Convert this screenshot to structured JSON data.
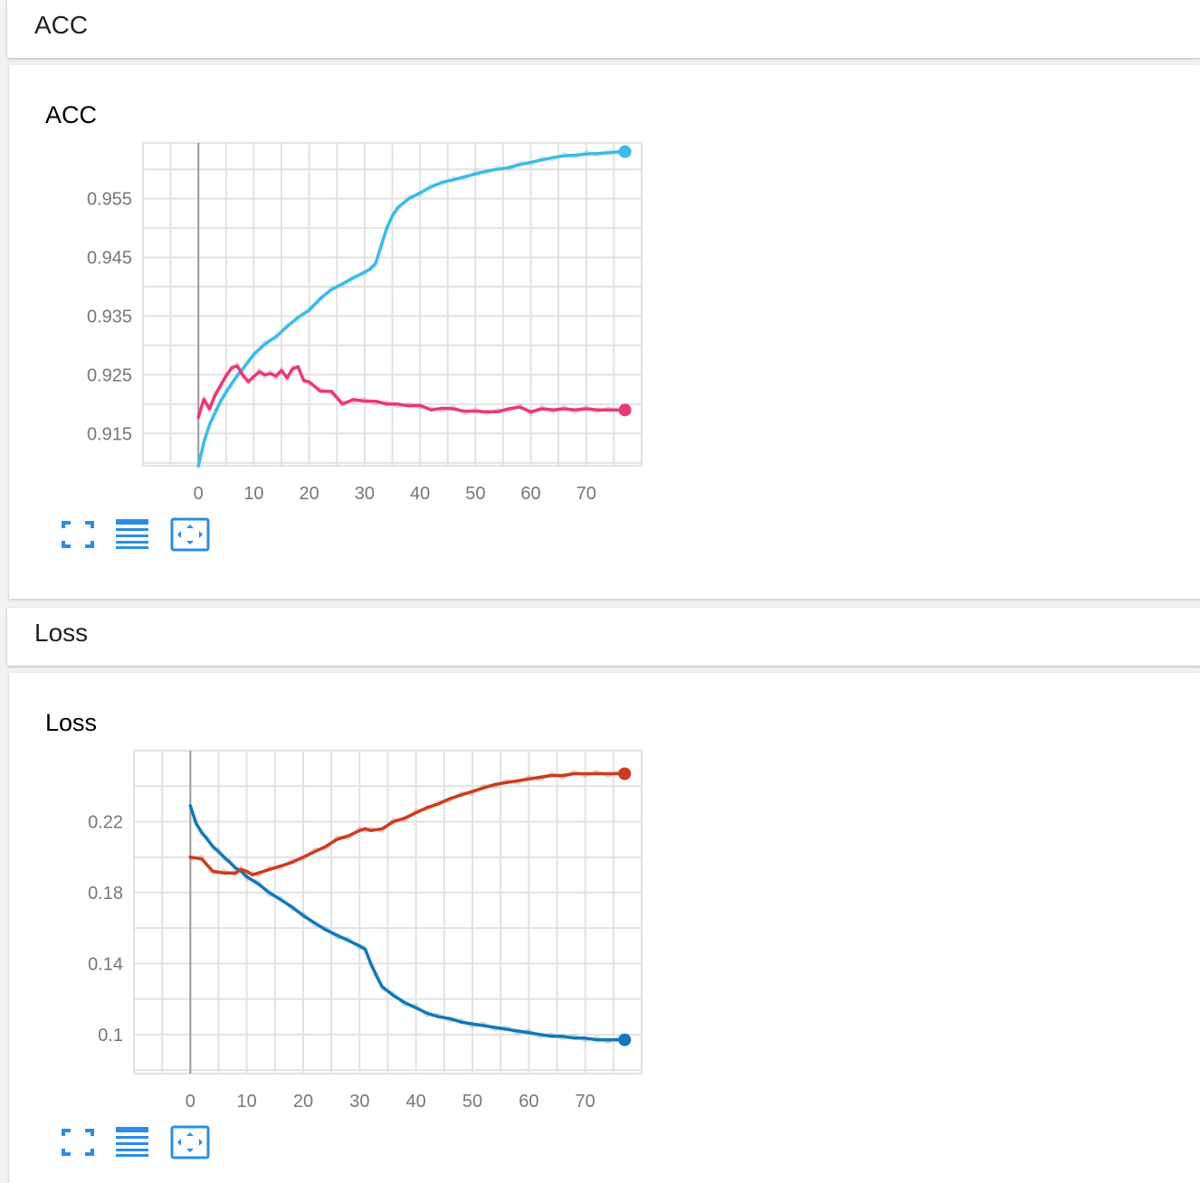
{
  "sections": [
    {
      "header": "ACC",
      "card_title": "ACC"
    },
    {
      "header": "Loss",
      "card_title": "Loss"
    }
  ],
  "colors": {
    "train_acc": "#3bbbe8",
    "val_acc": "#e8387a",
    "train_loss": "#1278b8",
    "val_loss": "#cc3b1e",
    "icon_blue": "#2b8de6"
  },
  "icons": [
    "fullscreen-icon",
    "toggle-log-scale-icon",
    "fit-domain-icon"
  ],
  "chart_data": [
    {
      "type": "line",
      "title": "ACC",
      "xlim": [
        -10,
        80
      ],
      "ylim": [
        0.9095,
        0.9645
      ],
      "x_ticks": [
        0,
        10,
        20,
        30,
        40,
        50,
        60,
        70
      ],
      "y_ticks": [
        0.915,
        0.925,
        0.935,
        0.945,
        0.955
      ],
      "y_tick_labels": [
        "0.915",
        "0.925",
        "0.935",
        "0.945",
        "0.955"
      ],
      "x_tick_labels": [
        "0",
        "10",
        "20",
        "30",
        "40",
        "50",
        "60",
        "70"
      ],
      "grid": true,
      "series": [
        {
          "color_key": "train_acc",
          "x": [
            0,
            1,
            2,
            3,
            4,
            5,
            6,
            7,
            8,
            9,
            10,
            12,
            14,
            16,
            18,
            20,
            22,
            24,
            26,
            28,
            30,
            31,
            32,
            33,
            34,
            35,
            36,
            38,
            40,
            42,
            44,
            46,
            48,
            50,
            52,
            54,
            56,
            58,
            60,
            62,
            64,
            66,
            68,
            70,
            72,
            74,
            76,
            77
          ],
          "y": [
            0.9095,
            0.9135,
            0.9165,
            0.9185,
            0.9205,
            0.922,
            0.9235,
            0.9248,
            0.926,
            0.9272,
            0.9285,
            0.9302,
            0.9315,
            0.9332,
            0.9348,
            0.936,
            0.938,
            0.9395,
            0.9405,
            0.9415,
            0.9425,
            0.943,
            0.944,
            0.947,
            0.95,
            0.952,
            0.9535,
            0.955,
            0.956,
            0.957,
            0.9578,
            0.9582,
            0.9587,
            0.9592,
            0.9597,
            0.96,
            0.9603,
            0.9608,
            0.9612,
            0.9616,
            0.962,
            0.9623,
            0.9624,
            0.9626,
            0.9627,
            0.9628,
            0.963,
            0.963
          ]
        },
        {
          "color_key": "val_acc",
          "x": [
            0,
            1,
            2,
            3,
            4,
            5,
            6,
            7,
            8,
            9,
            10,
            11,
            12,
            13,
            14,
            15,
            16,
            17,
            18,
            19,
            20,
            22,
            24,
            26,
            28,
            30,
            32,
            34,
            36,
            38,
            40,
            42,
            44,
            46,
            48,
            50,
            52,
            54,
            56,
            58,
            60,
            62,
            64,
            66,
            68,
            70,
            72,
            74,
            76,
            77
          ],
          "y": [
            0.9178,
            0.9208,
            0.9192,
            0.9215,
            0.9232,
            0.9248,
            0.9262,
            0.9265,
            0.925,
            0.9238,
            0.9247,
            0.9255,
            0.925,
            0.9252,
            0.9248,
            0.9257,
            0.9245,
            0.926,
            0.9264,
            0.924,
            0.9238,
            0.9222,
            0.9222,
            0.92,
            0.9208,
            0.9205,
            0.9205,
            0.92,
            0.92,
            0.9197,
            0.9198,
            0.919,
            0.9193,
            0.9192,
            0.9188,
            0.9188,
            0.9187,
            0.9187,
            0.9192,
            0.9195,
            0.9187,
            0.9192,
            0.919,
            0.9192,
            0.919,
            0.9192,
            0.919,
            0.919,
            0.919,
            0.919
          ]
        }
      ]
    },
    {
      "type": "line",
      "title": "Loss",
      "xlim": [
        -10,
        80
      ],
      "ylim": [
        0.078,
        0.26
      ],
      "x_ticks": [
        0,
        10,
        20,
        30,
        40,
        50,
        60,
        70
      ],
      "y_ticks": [
        0.1,
        0.14,
        0.18,
        0.22
      ],
      "y_tick_labels": [
        "0.1",
        "0.14",
        "0.18",
        "0.22"
      ],
      "x_tick_labels": [
        "0",
        "10",
        "20",
        "30",
        "40",
        "50",
        "60",
        "70"
      ],
      "grid": true,
      "series": [
        {
          "color_key": "train_loss",
          "x": [
            0,
            1,
            2,
            3,
            4,
            5,
            6,
            7,
            8,
            9,
            10,
            12,
            14,
            16,
            18,
            20,
            22,
            24,
            26,
            28,
            30,
            31,
            32,
            33,
            34,
            36,
            38,
            40,
            42,
            44,
            46,
            48,
            50,
            52,
            54,
            56,
            58,
            60,
            62,
            64,
            66,
            68,
            70,
            72,
            74,
            76,
            77
          ],
          "y": [
            0.229,
            0.219,
            0.214,
            0.21,
            0.206,
            0.203,
            0.2,
            0.197,
            0.194,
            0.192,
            0.189,
            0.185,
            0.18,
            0.176,
            0.172,
            0.167,
            0.163,
            0.159,
            0.156,
            0.153,
            0.15,
            0.148,
            0.14,
            0.133,
            0.127,
            0.122,
            0.118,
            0.115,
            0.112,
            0.11,
            0.109,
            0.107,
            0.106,
            0.105,
            0.104,
            0.103,
            0.102,
            0.101,
            0.1,
            0.099,
            0.099,
            0.098,
            0.098,
            0.097,
            0.097,
            0.097,
            0.097
          ]
        },
        {
          "color_key": "val_loss",
          "x": [
            0,
            2,
            4,
            6,
            8,
            9,
            10,
            11,
            12,
            14,
            16,
            18,
            20,
            22,
            24,
            26,
            28,
            30,
            31,
            32,
            34,
            36,
            38,
            40,
            42,
            44,
            46,
            48,
            50,
            52,
            54,
            56,
            58,
            60,
            62,
            64,
            66,
            68,
            70,
            72,
            74,
            76,
            77
          ],
          "y": [
            0.2,
            0.199,
            0.192,
            0.191,
            0.191,
            0.193,
            0.192,
            0.19,
            0.191,
            0.193,
            0.195,
            0.197,
            0.2,
            0.203,
            0.206,
            0.21,
            0.212,
            0.215,
            0.216,
            0.215,
            0.216,
            0.22,
            0.222,
            0.225,
            0.228,
            0.23,
            0.233,
            0.235,
            0.237,
            0.239,
            0.241,
            0.242,
            0.243,
            0.244,
            0.245,
            0.246,
            0.246,
            0.247,
            0.247,
            0.247,
            0.247,
            0.247,
            0.247
          ]
        }
      ]
    }
  ]
}
